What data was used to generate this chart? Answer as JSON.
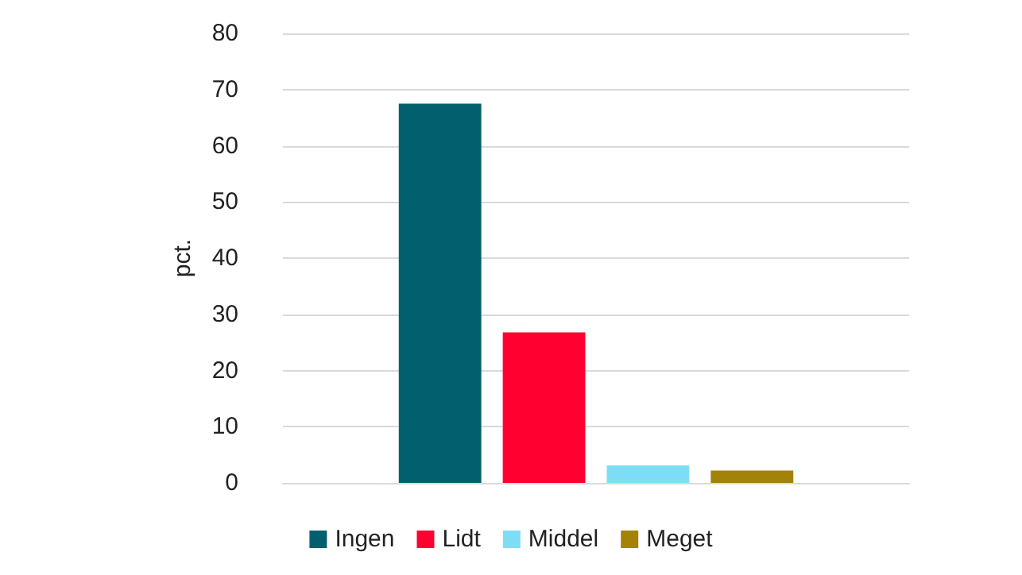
{
  "chart_data": {
    "type": "bar",
    "ylabel": "pct.",
    "categories": [
      null
    ],
    "series": [
      {
        "name": "Ingen",
        "color": "#02606e",
        "values": [
          67.5
        ]
      },
      {
        "name": "Lidt",
        "color": "#ff0030",
        "values": [
          26.8
        ]
      },
      {
        "name": "Middel",
        "color": "#7fdcf5",
        "values": [
          3.1
        ]
      },
      {
        "name": "Meget",
        "color": "#a38208",
        "values": [
          2.2
        ]
      }
    ],
    "ylim": [
      0,
      80
    ],
    "yticks": [
      0,
      10,
      20,
      30,
      40,
      50,
      60,
      70,
      80
    ],
    "grid": "y",
    "legend": "bottom"
  }
}
